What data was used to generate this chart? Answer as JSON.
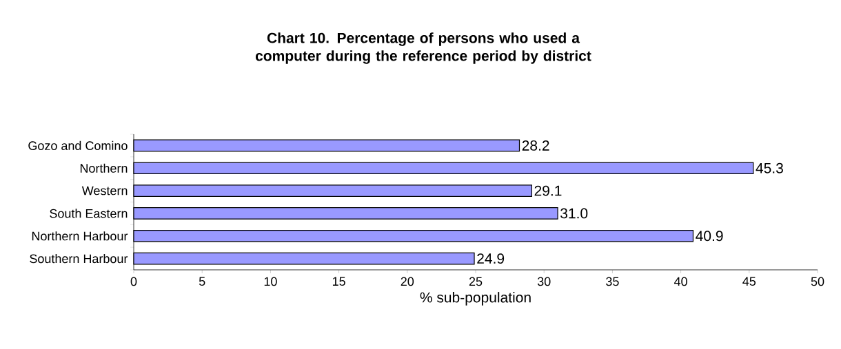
{
  "chart_data": {
    "type": "bar",
    "orientation": "horizontal",
    "title": "Chart 10.  Percentage of persons who used a computer during the reference period by district",
    "xlabel": "% sub-population",
    "categories": [
      "Gozo and Comino",
      "Northern",
      "Western",
      "South Eastern",
      "Northern Harbour",
      "Southern Harbour"
    ],
    "values": [
      28.2,
      45.3,
      29.1,
      31.0,
      40.9,
      24.9
    ],
    "color": "#9999ff",
    "value_labels": [
      "28.2",
      "45.3",
      "29.1",
      "31.0",
      "40.9",
      "24.9"
    ],
    "xlim": [
      0,
      50
    ],
    "xticks": [
      0,
      5,
      10,
      15,
      20,
      25,
      30,
      35,
      40,
      45,
      50
    ]
  }
}
